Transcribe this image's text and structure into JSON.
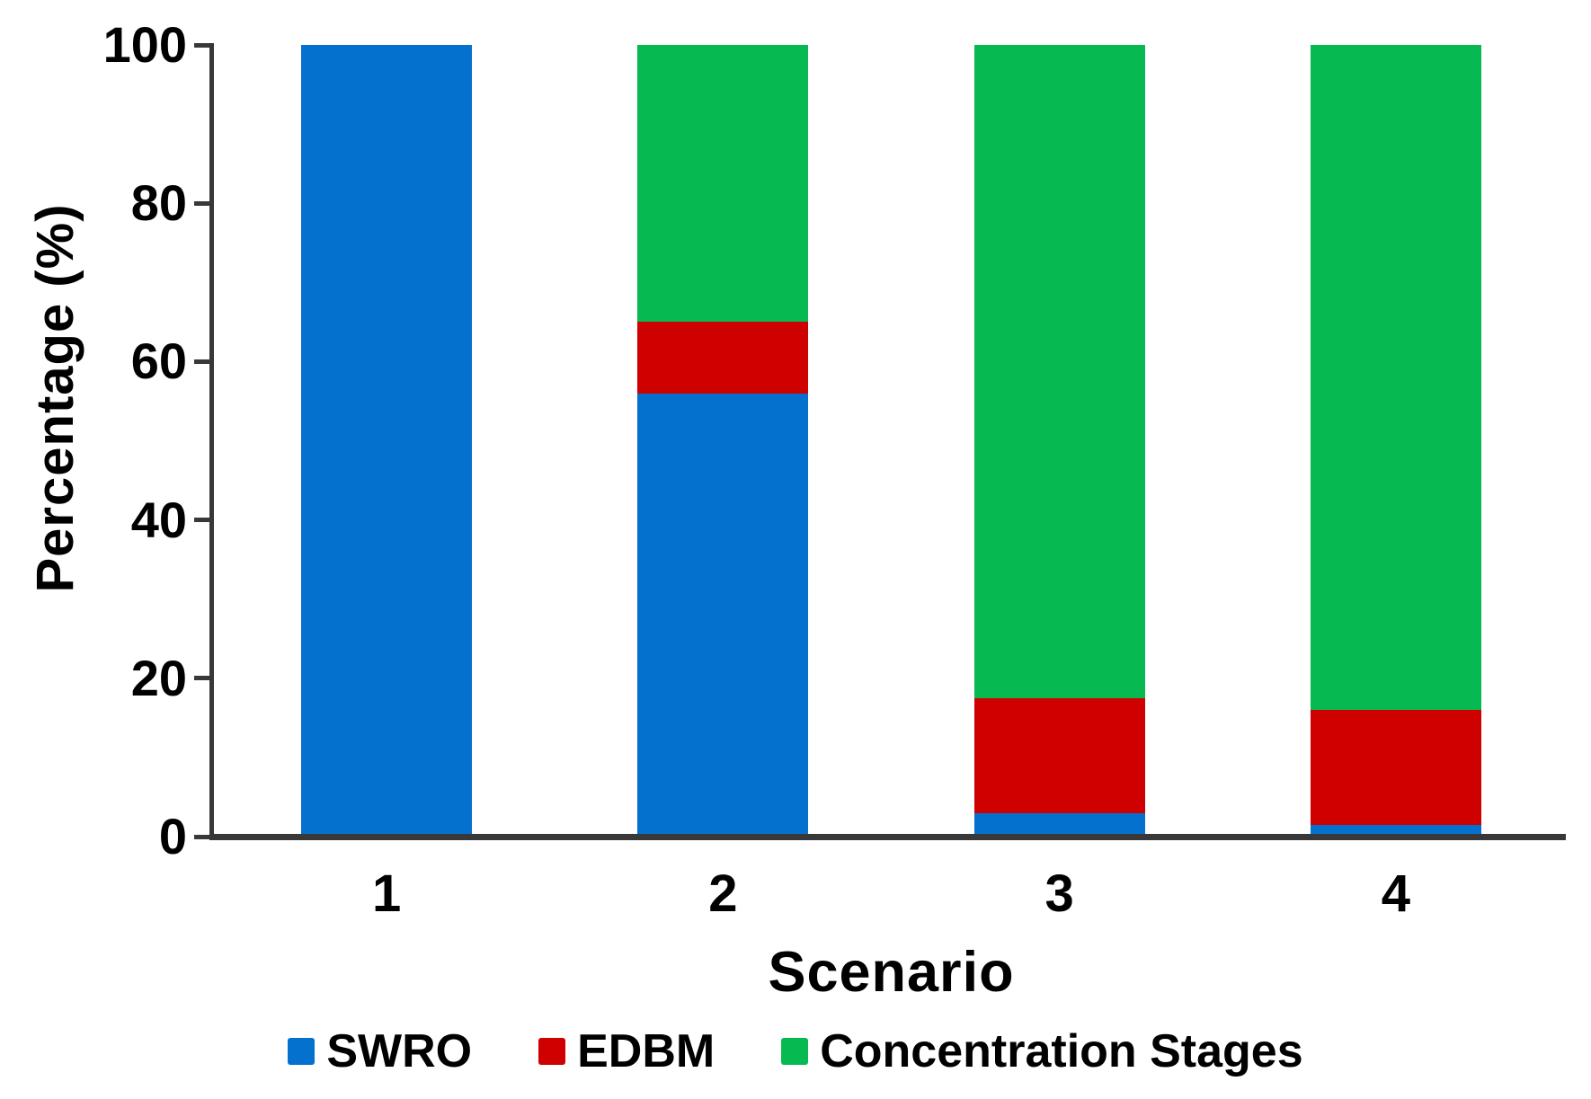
{
  "figure": {
    "background_color": "#ffffff",
    "axis_color": "#383838",
    "text_color": "#000000"
  },
  "chart_data": {
    "type": "bar",
    "stacked": true,
    "title": "",
    "xlabel": "Scenario",
    "ylabel": "Percentage (%)",
    "categories": [
      "1",
      "2",
      "3",
      "4"
    ],
    "series": [
      {
        "name": "SWRO",
        "color": "#0571CE",
        "values": [
          100,
          56,
          3,
          1.5
        ]
      },
      {
        "name": "EDBM",
        "color": "#CE0000",
        "values": [
          0,
          9,
          14.5,
          14.5
        ]
      },
      {
        "name": "Concentration Stages",
        "color": "#07B951",
        "values": [
          0,
          35,
          82.5,
          84
        ]
      }
    ],
    "ylim": [
      0,
      100
    ],
    "yticks": [
      0,
      20,
      40,
      60,
      80,
      100
    ],
    "grid": false,
    "legend_position": "bottom"
  }
}
